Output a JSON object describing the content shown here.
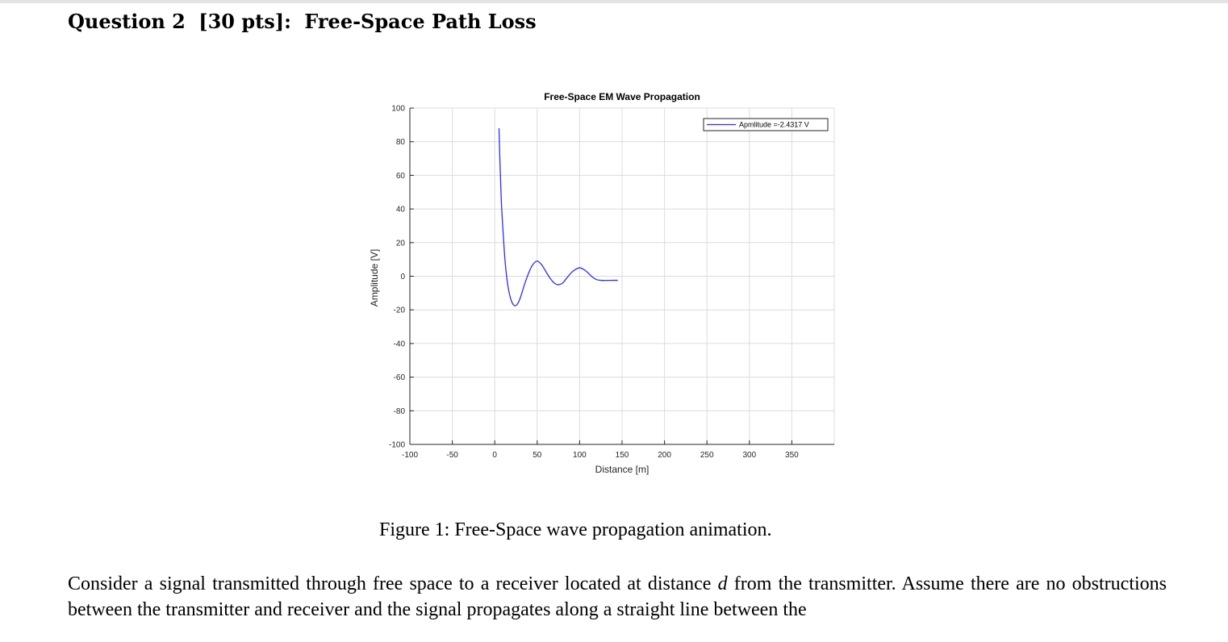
{
  "heading": {
    "label": "Question 2",
    "points": "[30 pts]:",
    "topic": "Free-Space Path Loss"
  },
  "figure": {
    "caption": "Figure 1: Free-Space wave propagation animation."
  },
  "body": {
    "sentence1_before_var": "Consider a signal transmitted through free space to a receiver located at distance",
    "variable": "d",
    "sentence1_after_var": "from the transmitter. Assume there are no obstructions between the transmitter and receiver and the signal propagates along a straight line between the"
  },
  "colors": {
    "line": "#2b2bff",
    "grid": "#dcdcdc",
    "axis": "#262626"
  },
  "chart_data": {
    "type": "line",
    "title": "Free-Space EM Wave Propagation",
    "xlabel": "Distance [m]",
    "ylabel": "Amplitude [V]",
    "xlim": [
      -100,
      400
    ],
    "ylim": [
      -100,
      100
    ],
    "xticks": [
      -100,
      -50,
      0,
      50,
      100,
      150,
      200,
      250,
      300,
      350
    ],
    "yticks": [
      100,
      80,
      60,
      40,
      20,
      0,
      -20,
      -40,
      -60,
      -80,
      -100
    ],
    "grid": true,
    "legend": {
      "entry": "Apmlitude =-2.4317 V",
      "location": "top-right"
    },
    "series": [
      {
        "name": "Apmlitude =-2.4317 V",
        "x": [
          5,
          6,
          7,
          8,
          10,
          12,
          15,
          18,
          22,
          26,
          30,
          35,
          40,
          45,
          50,
          55,
          60,
          65,
          70,
          75,
          80,
          85,
          90,
          95,
          100,
          105,
          110,
          115,
          120,
          125,
          130,
          135,
          140,
          145
        ],
        "y": [
          88,
          70,
          55,
          42,
          25,
          10,
          -4,
          -12,
          -17,
          -17,
          -13,
          -5,
          2,
          7,
          9,
          7,
          3,
          -1,
          -4,
          -5,
          -4,
          -1,
          2,
          4,
          5,
          4,
          2,
          -0.5,
          -2,
          -2.43,
          -2.5,
          -2.45,
          -2.43,
          -2.4317
        ]
      }
    ]
  }
}
